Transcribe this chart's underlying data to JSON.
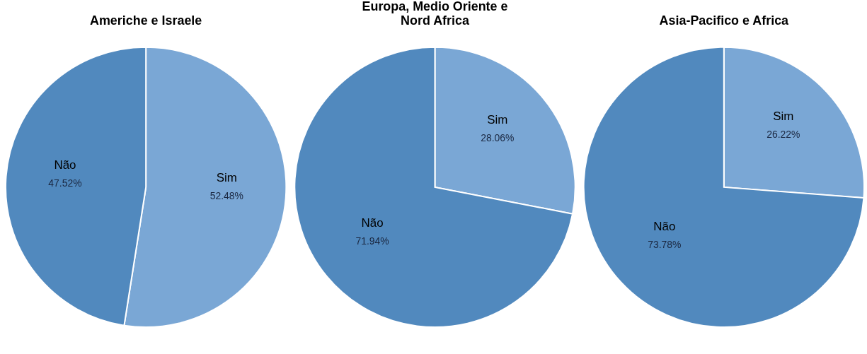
{
  "chart_data": [
    {
      "type": "pie",
      "title": "Americhe e Israele",
      "categories": [
        "Sim",
        "Não"
      ],
      "values": [
        52.48,
        47.52
      ],
      "value_labels": [
        "52.48%",
        "47.52%"
      ],
      "colors": [
        "#7aa7d5",
        "#5189be"
      ]
    },
    {
      "type": "pie",
      "title": "Europa, Medio Oriente e Nord Africa",
      "categories": [
        "Sim",
        "Não"
      ],
      "values": [
        28.06,
        71.94
      ],
      "value_labels": [
        "28.06%",
        "71.94%"
      ],
      "colors": [
        "#7aa7d5",
        "#5189be"
      ]
    },
    {
      "type": "pie",
      "title": "Asia-Pacifico e Africa",
      "categories": [
        "Sim",
        "Não"
      ],
      "values": [
        26.22,
        73.78
      ],
      "value_labels": [
        "26.22%",
        "73.78%"
      ],
      "colors": [
        "#7aa7d5",
        "#5189be"
      ]
    }
  ]
}
